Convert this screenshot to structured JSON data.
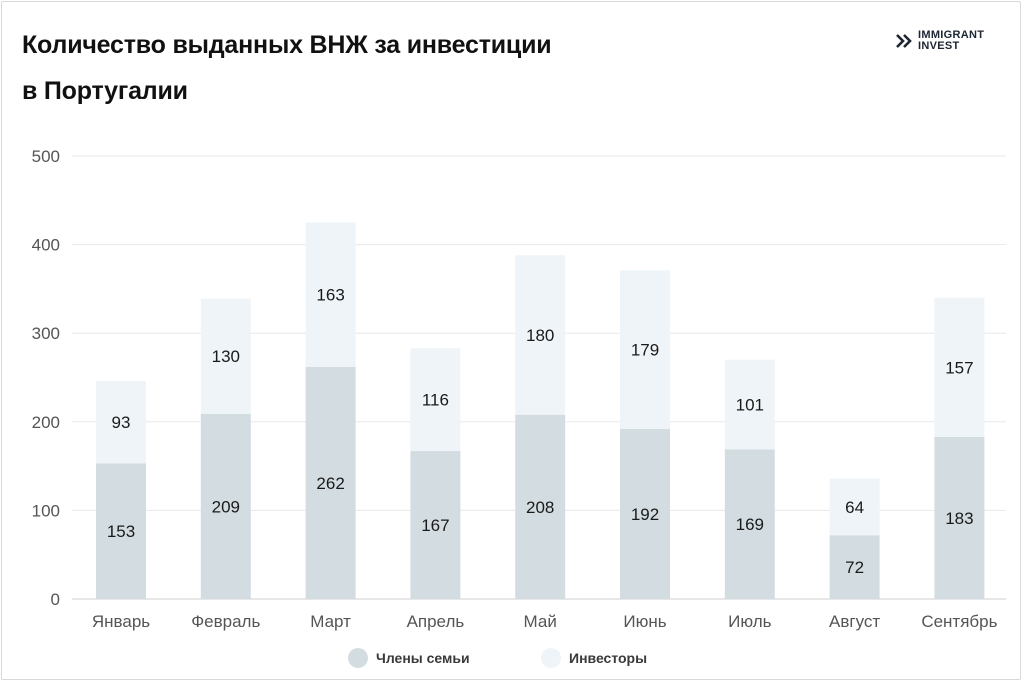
{
  "header": {
    "title_line1": "Количество выданных ВНЖ за инвестиции",
    "title_line2": "в Португалии"
  },
  "logo": {
    "line1": "IMMIGRANT",
    "line2": "INVEST",
    "icon": "double-chevron-icon",
    "color": "#1d2533"
  },
  "chart_data": {
    "type": "bar",
    "stacked": true,
    "categories": [
      "Январь",
      "Февраль",
      "Март",
      "Апрель",
      "Май",
      "Июнь",
      "Июль",
      "Август",
      "Сентябрь"
    ],
    "series": [
      {
        "name": "Члены семьи",
        "color": "#d3dde1",
        "values": [
          153,
          209,
          262,
          167,
          208,
          192,
          169,
          72,
          183
        ]
      },
      {
        "name": "Инвесторы",
        "color": "#eef4f7",
        "values": [
          93,
          130,
          163,
          116,
          180,
          179,
          101,
          64,
          157
        ]
      }
    ],
    "ylim": [
      0,
      500
    ],
    "yticks": [
      "0",
      "100",
      "200",
      "300",
      "400",
      "500"
    ],
    "grid": true,
    "legend": "bottom-center"
  }
}
